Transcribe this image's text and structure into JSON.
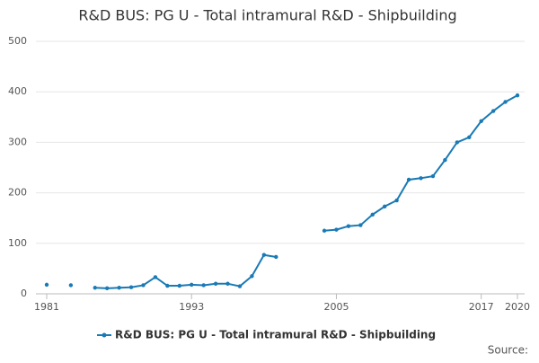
{
  "chart_data": {
    "type": "line",
    "title": "R&D BUS: PG U - Total intramural R&D - Shipbuilding",
    "x": [
      1981,
      1982,
      1983,
      1984,
      1985,
      1986,
      1987,
      1988,
      1989,
      1990,
      1991,
      1992,
      1993,
      1994,
      1995,
      1996,
      1997,
      1998,
      1999,
      2000,
      2001,
      2002,
      2003,
      2004,
      2005,
      2006,
      2007,
      2008,
      2009,
      2010,
      2011,
      2012,
      2013,
      2014,
      2015,
      2016,
      2017,
      2018,
      2019,
      2020
    ],
    "series": [
      {
        "name": "R&D BUS: PG U - Total intramural R&D - Shipbuilding",
        "color": "#1a7ab5",
        "values": [
          18,
          null,
          17,
          null,
          12,
          11,
          12,
          13,
          17,
          33,
          16,
          16,
          18,
          17,
          20,
          20,
          15,
          35,
          77,
          73,
          null,
          null,
          null,
          125,
          127,
          134,
          136,
          157,
          173,
          185,
          226,
          229,
          233,
          265,
          300,
          310,
          342,
          362,
          380,
          393
        ]
      }
    ],
    "xlim": [
      1981,
      2020
    ],
    "xticks": [
      1981,
      1993,
      2005,
      2017,
      2020
    ],
    "ylim": [
      0,
      500
    ],
    "yticks": [
      0,
      100,
      200,
      300,
      400,
      500
    ],
    "grid": true,
    "legend": "bottom",
    "source": "Source:"
  }
}
